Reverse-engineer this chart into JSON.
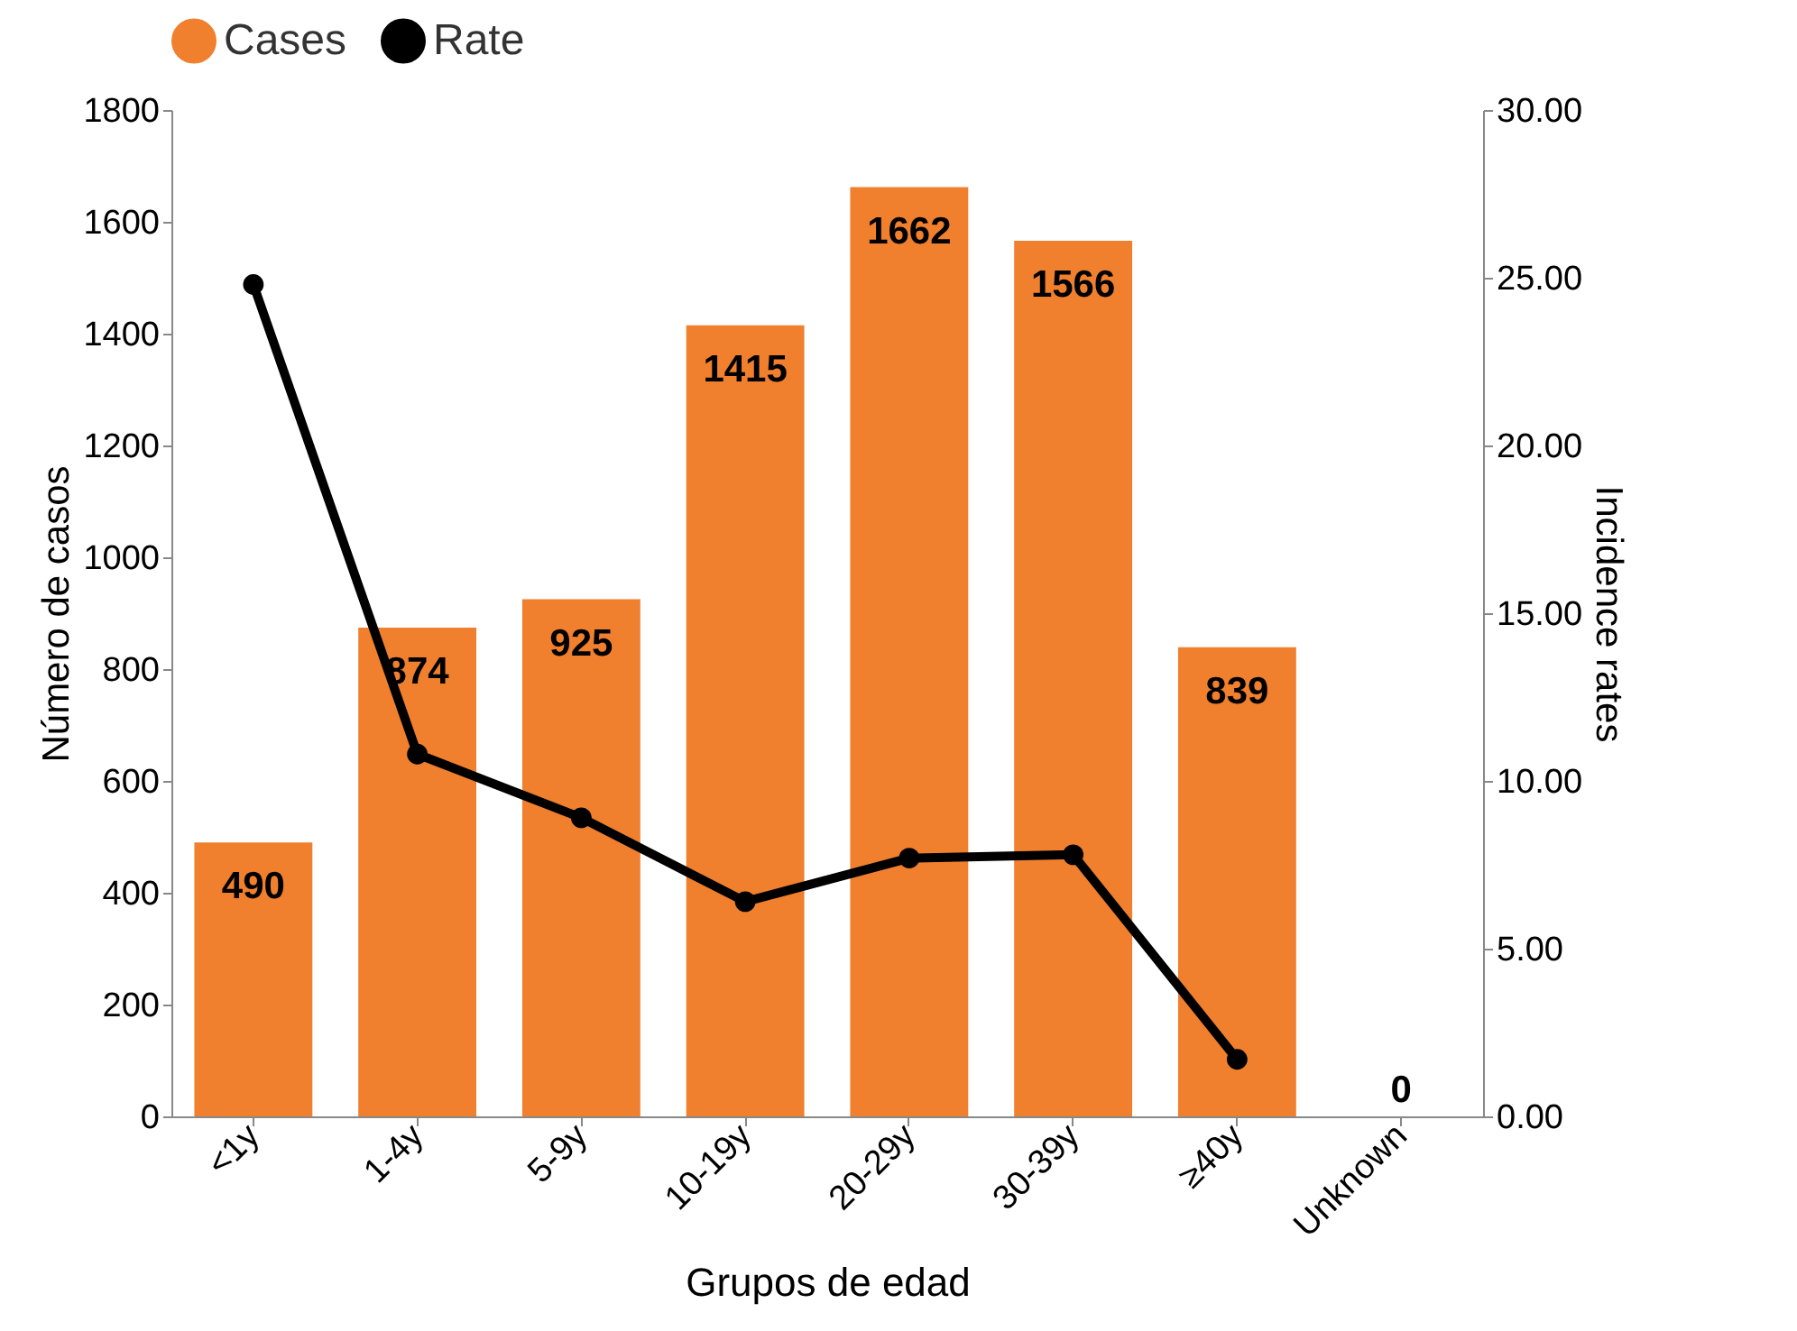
{
  "chart_data": {
    "type": "bar",
    "xlabel": "Grupos de edad",
    "ylabel": "Número de casos",
    "y2label": "Incidence rates",
    "categories": [
      "<1y",
      "1-4y",
      "5-9y",
      "10-19y",
      "20-29y",
      "30-39y",
      "≥40y",
      "Unknown"
    ],
    "series": [
      {
        "name": "Cases",
        "color": "#f07f2e",
        "values": [
          490,
          874,
          925,
          1415,
          1662,
          1566,
          839,
          0
        ],
        "value_labels": [
          "490",
          "874",
          "925",
          "1415",
          "1662",
          "1566",
          "839",
          "0"
        ]
      },
      {
        "name": "Rate",
        "type": "line",
        "axis": "y2",
        "color": "#000000",
        "marker": "circle",
        "line_style": "solid",
        "values": [
          24.8,
          10.8,
          8.9,
          6.4,
          7.7,
          7.8,
          1.7,
          null
        ]
      }
    ],
    "ylim": [
      0,
      1800
    ],
    "yticks": [
      0,
      200,
      400,
      600,
      800,
      1000,
      1200,
      1400,
      1600,
      1800
    ],
    "y2lim": [
      0,
      30
    ],
    "y2ticks": [
      {
        "value": 0,
        "label": "0.00"
      },
      {
        "value": 5,
        "label": "5.00"
      },
      {
        "value": 10,
        "label": "10.00"
      },
      {
        "value": 15,
        "label": "15.00"
      },
      {
        "value": 20,
        "label": "20.00"
      },
      {
        "value": 25,
        "label": "25.00"
      },
      {
        "value": 30,
        "label": "30.00"
      }
    ],
    "legend": "top",
    "grid": false
  }
}
